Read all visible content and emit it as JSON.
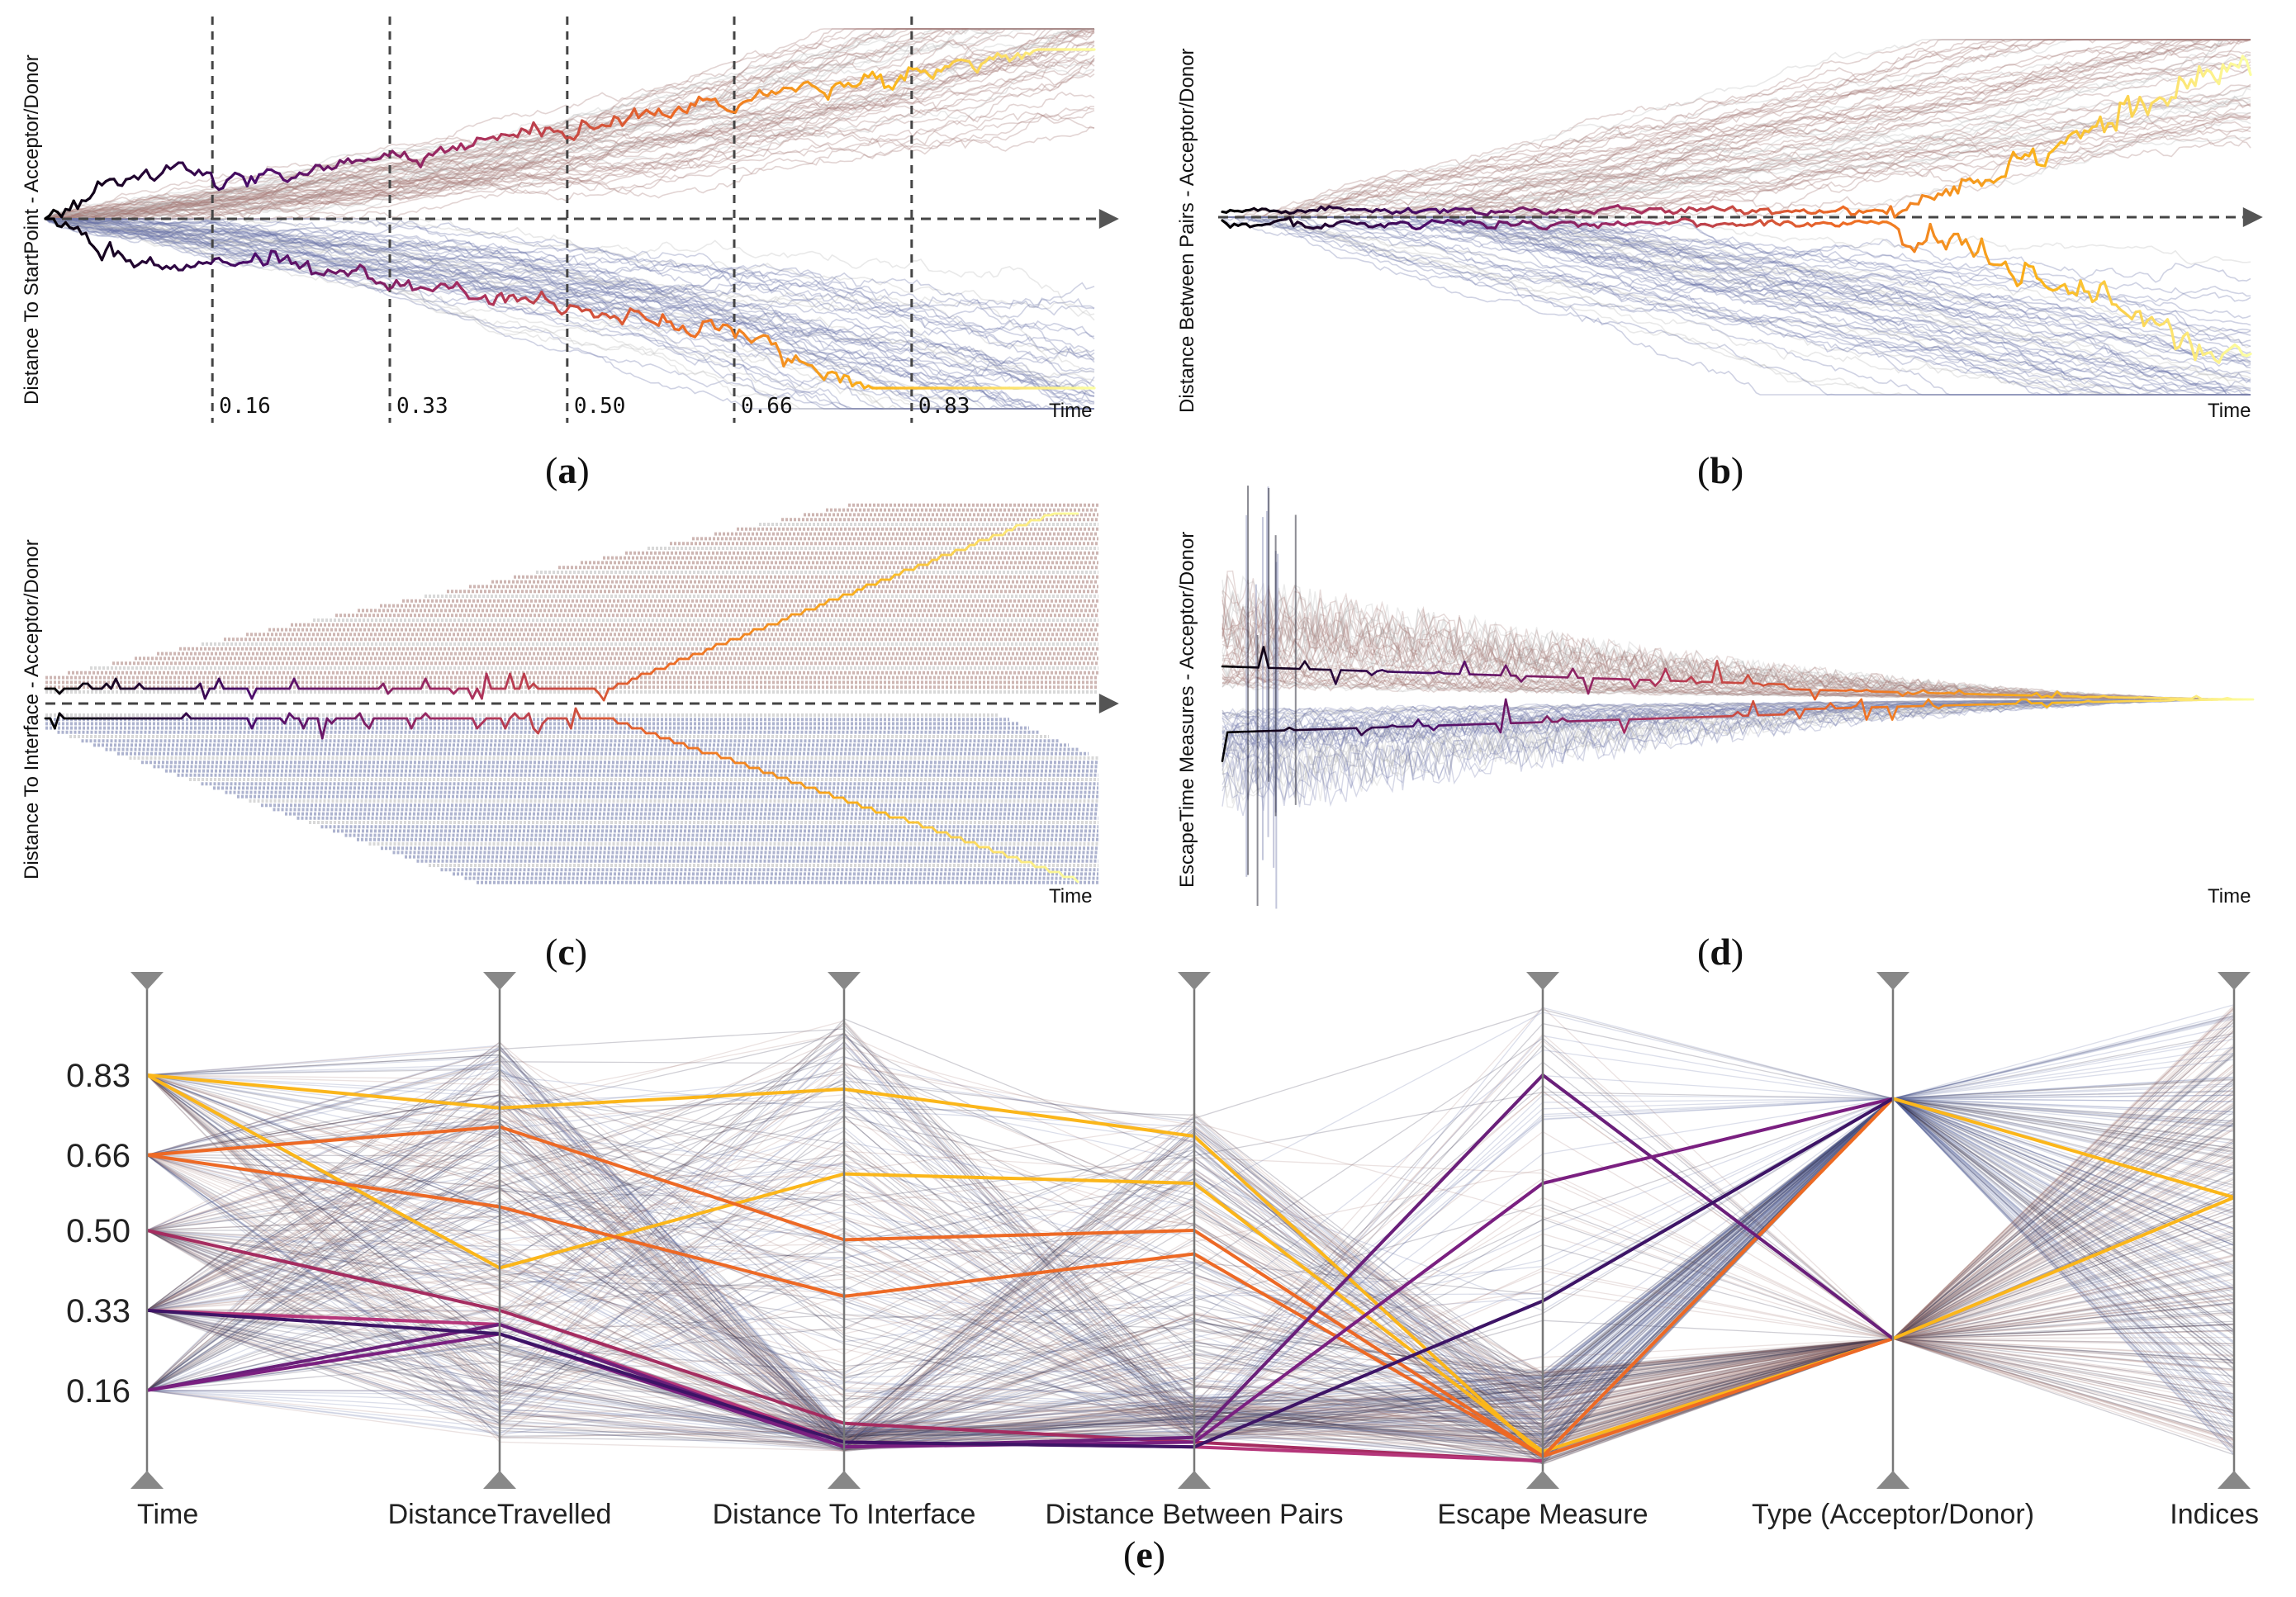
{
  "figure_caption_parts": {
    "a": [
      "(",
      "a",
      ")"
    ],
    "b": [
      "(",
      "b",
      ")"
    ],
    "c": [
      "(",
      "c",
      ")"
    ],
    "d": [
      "(",
      "d",
      ")"
    ],
    "e": [
      "(",
      "e",
      ")"
    ]
  },
  "chart_data": [
    {
      "id": "a",
      "type": "line",
      "ylabel": "Distance To StartPoint - Acceptor/Donor",
      "xlabel": "Time",
      "time_markers": [
        "0.16",
        "0.33",
        "0.50",
        "0.66",
        "0.83"
      ],
      "time_marker_values": [
        0.16,
        0.33,
        0.5,
        0.66,
        0.83
      ],
      "series_groups": [
        {
          "name": "Acceptor",
          "color": "#a57a75",
          "direction": "up",
          "count": 60
        },
        {
          "name": "Donor",
          "color": "#6a74a8",
          "direction": "down",
          "count": 60
        }
      ],
      "highlight_colormap": [
        "#000000",
        "#4b0c6b",
        "#a52c60",
        "#ed6925",
        "#fbb61a",
        "#fcffa4"
      ]
    },
    {
      "id": "b",
      "type": "line",
      "ylabel": "Distance Between Pairs - Acceptor/Donor",
      "xlabel": "Time",
      "series_groups": [
        {
          "name": "Acceptor",
          "color": "#a57a75",
          "direction": "up",
          "count": 60
        },
        {
          "name": "Donor",
          "color": "#6a74a8",
          "direction": "down",
          "count": 60
        }
      ],
      "highlight_colormap": [
        "#000000",
        "#4b0c6b",
        "#a52c60",
        "#ed6925",
        "#fbb61a",
        "#fcffa4"
      ]
    },
    {
      "id": "c",
      "type": "line",
      "ylabel": "Distance To Interface - Acceptor/Donor",
      "xlabel": "Time",
      "series_groups": [
        {
          "name": "Acceptor",
          "color": "#a57a75",
          "direction": "up",
          "count": 40
        },
        {
          "name": "Donor",
          "color": "#6a74a8",
          "direction": "down",
          "count": 40
        }
      ],
      "highlight_colormap": [
        "#000000",
        "#4b0c6b",
        "#a52c60",
        "#ed6925",
        "#fbb61a",
        "#fcffa4"
      ]
    },
    {
      "id": "d",
      "type": "line",
      "ylabel": "EscapeTime Measures - Acceptor/Donor",
      "xlabel": "Time",
      "series_groups": [
        {
          "name": "Acceptor",
          "color": "#a57a75",
          "direction": "up",
          "count": 50
        },
        {
          "name": "Donor",
          "color": "#6a74a8",
          "direction": "down",
          "count": 50
        }
      ],
      "highlight_colormap": [
        "#000000",
        "#4b0c6b",
        "#a52c60",
        "#ed6925",
        "#fbb61a",
        "#fcffa4"
      ]
    },
    {
      "id": "e",
      "type": "parallel-coordinates",
      "axes": [
        "Time",
        "DistanceTravelled",
        "Distance To Interface",
        "Distance Between Pairs",
        "Escape Measure",
        "Type (Acceptor/Donor)",
        "Indices"
      ],
      "time_ticks": [
        "0.83",
        "0.66",
        "0.50",
        "0.33",
        "0.16"
      ],
      "time_tick_values": [
        0.83,
        0.66,
        0.5,
        0.33,
        0.16
      ],
      "time_range": [
        0,
        1
      ],
      "categories": {
        "Type (Acceptor/Donor)": [
          "Donor",
          "Acceptor"
        ]
      },
      "line_colors": {
        "acceptor": "#a57a75",
        "donor": "#5a6aa0",
        "dark": "#2a2440"
      },
      "highlighted_lines": [
        {
          "color": "#fbb61a",
          "values": [
            0.83,
            0.76,
            0.8,
            0.7,
            0.02,
            "Donor",
            0.57
          ]
        },
        {
          "color": "#fbb61a",
          "values": [
            0.83,
            0.42,
            0.62,
            0.6,
            0.03,
            "Acceptor",
            0.57
          ]
        },
        {
          "color": "#ed6925",
          "values": [
            0.66,
            0.72,
            0.48,
            0.5,
            0.02,
            "Donor",
            null
          ]
        },
        {
          "color": "#ed6925",
          "values": [
            0.66,
            0.55,
            0.36,
            0.45,
            0.02,
            "Acceptor",
            null
          ]
        },
        {
          "color": "#a52c60",
          "values": [
            0.5,
            0.33,
            0.09,
            0.05,
            0.01,
            null,
            null
          ]
        },
        {
          "color": "#b5367a",
          "values": [
            0.33,
            0.3,
            0.05,
            0.04,
            0.01,
            null,
            null
          ]
        },
        {
          "color": "#6a1f7a",
          "values": [
            0.16,
            0.3,
            0.04,
            0.06,
            0.83,
            "Acceptor",
            null
          ]
        },
        {
          "color": "#7a1f80",
          "values": [
            0.16,
            0.28,
            0.04,
            0.05,
            0.6,
            "Donor",
            null
          ]
        },
        {
          "color": "#3d1466",
          "values": [
            0.33,
            0.28,
            0.05,
            0.04,
            0.35,
            "Donor",
            null
          ]
        }
      ]
    }
  ]
}
